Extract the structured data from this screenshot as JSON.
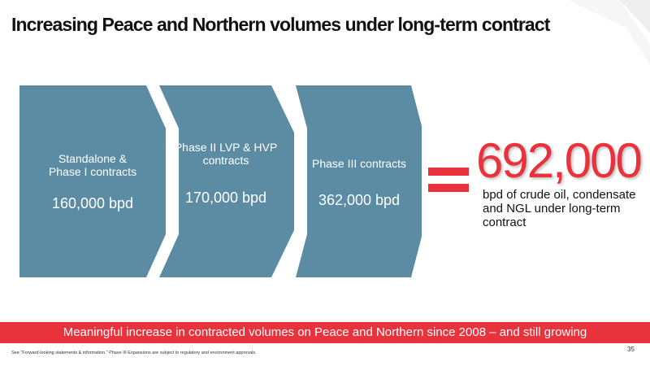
{
  "slide": {
    "title": "Increasing Peace and Northern volumes under long-term contract",
    "chevrons": [
      {
        "label": "Standalone &\nPhase I contracts",
        "value": "160,000 bpd"
      },
      {
        "label": "Phase II LVP & HVP\ncontracts",
        "value": "170,000 bpd"
      },
      {
        "label": "Phase III contracts",
        "value": "362,000 bpd"
      }
    ],
    "total_value": "692,000",
    "total_description": "bpd of crude oil, condensate and NGL under long-term contract",
    "banner": "Meaningful increase in contracted volumes on Peace and Northern since 2008 – and still growing",
    "footnote": "See \"Forward-looking statements & information.\" Phase III Expansions are subject to regulatory and environment approvals.",
    "page_number": "35"
  },
  "colors": {
    "chevron_fill": "#5b8ca3",
    "accent_red": "#e8323c",
    "title_text": "#111111"
  }
}
